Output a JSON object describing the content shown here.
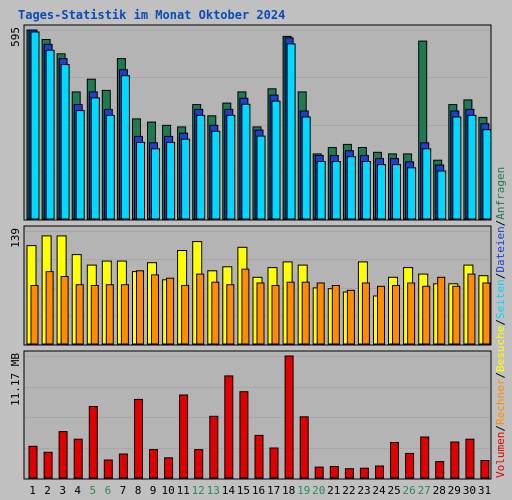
{
  "colors": {
    "background": "#c0c0c0",
    "panel": "#b4b4b4",
    "grid": "#a8a8a8",
    "title": "#0b4bb8",
    "axis_text": "#000000",
    "weekend": "#2a8a55",
    "Anfragen": "#1f7a52",
    "Dateien": "#1f3fd0",
    "Seiten": "#00d8ff",
    "Besuche": "#ffff00",
    "Rechner": "#ff8c00",
    "Volumen": "#e00000"
  },
  "chart_data": {
    "type": "bar",
    "title": "Tages-Statistik im Monat Oktober 2024",
    "categories": [
      "1",
      "2",
      "3",
      "4",
      "5",
      "6",
      "7",
      "8",
      "9",
      "10",
      "11",
      "12",
      "13",
      "14",
      "15",
      "16",
      "17",
      "18",
      "19",
      "20",
      "21",
      "22",
      "23",
      "24",
      "25",
      "26",
      "27",
      "28",
      "29",
      "30",
      "31"
    ],
    "weekend_days": [
      "5",
      "6",
      "12",
      "13",
      "19",
      "20",
      "26",
      "27"
    ],
    "panels": [
      {
        "id": "top",
        "ymax_label": "595",
        "ylim": [
          0,
          595
        ],
        "series": [
          {
            "name": "Anfragen",
            "values": [
              595,
              565,
              520,
              400,
              440,
              405,
              505,
              315,
              305,
              295,
              290,
              360,
              325,
              365,
              400,
              290,
              410,
              575,
              400,
              205,
              225,
              235,
              225,
              210,
              205,
              205,
              560,
              185,
              360,
              375,
              320
            ]
          },
          {
            "name": "Dateien",
            "values": [
              595,
              550,
              505,
              360,
              400,
              345,
              470,
              260,
              240,
              260,
              270,
              345,
              295,
              345,
              380,
              280,
              390,
              570,
              340,
              200,
              200,
              215,
              200,
              190,
              190,
              180,
              240,
              170,
              340,
              345,
              300
            ]
          },
          {
            "name": "Seiten",
            "values": [
              595,
              550,
              505,
              360,
              400,
              345,
              470,
              260,
              240,
              260,
              270,
              345,
              295,
              345,
              380,
              280,
              390,
              570,
              340,
              200,
              200,
              215,
              200,
              190,
              190,
              180,
              240,
              170,
              340,
              345,
              300
            ]
          }
        ]
      },
      {
        "id": "middle",
        "ymax_label": "139",
        "ylim": [
          0,
          139
        ],
        "series": [
          {
            "name": "Besuche",
            "values": [
              121,
              133,
              133,
              110,
              97,
              102,
              102,
              89,
              100,
              79,
              115,
              126,
              90,
              95,
              119,
              82,
              94,
              101,
              97,
              69,
              68,
              64,
              101,
              59,
              82,
              94,
              86,
              74,
              74,
              97,
              84
            ]
          },
          {
            "name": "Rechner",
            "values": [
              72,
              89,
              83,
              73,
              72,
              73,
              73,
              90,
              85,
              81,
              72,
              86,
              76,
              73,
              92,
              75,
              72,
              76,
              76,
              75,
              72,
              66,
              75,
              71,
              72,
              75,
              71,
              82,
              71,
              86,
              75
            ]
          }
        ]
      },
      {
        "id": "bottom",
        "ymax_label": "11.17 MB",
        "ylim": [
          0,
          11.17
        ],
        "series": [
          {
            "name": "Volumen",
            "values": [
              2.9,
              2.35,
              4.25,
              3.55,
              6.55,
              1.65,
              2.2,
              7.2,
              2.6,
              1.85,
              7.6,
              2.6,
              5.65,
              9.35,
              7.9,
              3.9,
              2.75,
              11.17,
              5.6,
              1.0,
              1.05,
              0.85,
              0.9,
              1.1,
              3.25,
              2.25,
              3.75,
              1.5,
              3.3,
              3.55,
              1.6
            ]
          }
        ]
      }
    ],
    "legend": [
      {
        "label": "Volumen",
        "color_key": "Volumen"
      },
      {
        "label": "/",
        "color_key": "axis_text"
      },
      {
        "label": "Rechner",
        "color_key": "Rechner"
      },
      {
        "label": "/",
        "color_key": "axis_text"
      },
      {
        "label": "Besuche",
        "color_key": "Besuche"
      },
      {
        "label": "/",
        "color_key": "axis_text"
      },
      {
        "label": "Seiten",
        "color_key": "Seiten"
      },
      {
        "label": "/",
        "color_key": "axis_text"
      },
      {
        "label": "Dateien",
        "color_key": "Dateien"
      },
      {
        "label": "/",
        "color_key": "axis_text"
      },
      {
        "label": "Anfragen",
        "color_key": "Anfragen"
      }
    ]
  }
}
